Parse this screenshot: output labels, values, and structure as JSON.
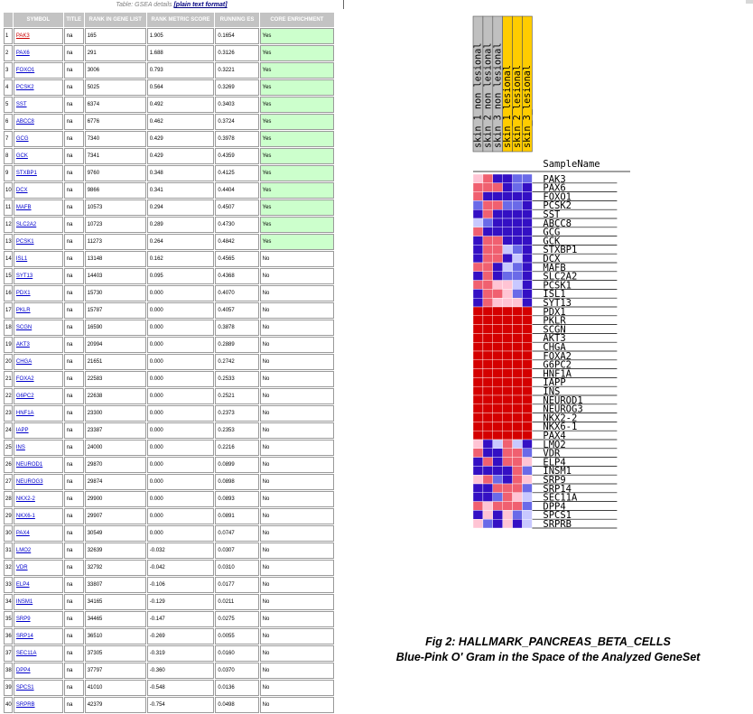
{
  "caption": {
    "prefix": "Table: GSEA details ",
    "link": "[plain text format]"
  },
  "columns": [
    "",
    "SYMBOL",
    "TITLE",
    "RANK IN GENE LIST",
    "RANK METRIC SCORE",
    "RUNNING ES",
    "CORE ENRICHMENT"
  ],
  "rows": [
    [
      "1",
      "PAK3",
      "na",
      "165",
      "1.905",
      "0.1654",
      "Yes"
    ],
    [
      "2",
      "PAX6",
      "na",
      "291",
      "1.688",
      "0.3126",
      "Yes"
    ],
    [
      "3",
      "FOXO1",
      "na",
      "3006",
      "0.793",
      "0.3221",
      "Yes"
    ],
    [
      "4",
      "PCSK2",
      "na",
      "5025",
      "0.564",
      "0.3269",
      "Yes"
    ],
    [
      "5",
      "SST",
      "na",
      "6374",
      "0.492",
      "0.3403",
      "Yes"
    ],
    [
      "6",
      "ABCC8",
      "na",
      "6776",
      "0.462",
      "0.3724",
      "Yes"
    ],
    [
      "7",
      "GCG",
      "na",
      "7340",
      "0.429",
      "0.3978",
      "Yes"
    ],
    [
      "8",
      "GCK",
      "na",
      "7341",
      "0.429",
      "0.4359",
      "Yes"
    ],
    [
      "9",
      "STXBP1",
      "na",
      "9760",
      "0.348",
      "0.4125",
      "Yes"
    ],
    [
      "10",
      "DCX",
      "na",
      "9866",
      "0.341",
      "0.4404",
      "Yes"
    ],
    [
      "11",
      "MAFB",
      "na",
      "10573",
      "0.294",
      "0.4507",
      "Yes"
    ],
    [
      "12",
      "SLC2A2",
      "na",
      "10723",
      "0.289",
      "0.4730",
      "Yes"
    ],
    [
      "13",
      "PCSK1",
      "na",
      "11273",
      "0.264",
      "0.4842",
      "Yes"
    ],
    [
      "14",
      "ISL1",
      "na",
      "13148",
      "0.162",
      "0.4565",
      "No"
    ],
    [
      "15",
      "SYT13",
      "na",
      "14403",
      "0.095",
      "0.4368",
      "No"
    ],
    [
      "16",
      "PDX1",
      "na",
      "15730",
      "0.000",
      "0.4070",
      "No"
    ],
    [
      "17",
      "PKLR",
      "na",
      "15787",
      "0.000",
      "0.4057",
      "No"
    ],
    [
      "18",
      "SCGN",
      "na",
      "16590",
      "0.000",
      "0.3878",
      "No"
    ],
    [
      "19",
      "AKT3",
      "na",
      "20994",
      "0.000",
      "0.2889",
      "No"
    ],
    [
      "20",
      "CHGA",
      "na",
      "21651",
      "0.000",
      "0.2742",
      "No"
    ],
    [
      "21",
      "FOXA2",
      "na",
      "22583",
      "0.000",
      "0.2533",
      "No"
    ],
    [
      "22",
      "G6PC2",
      "na",
      "22638",
      "0.000",
      "0.2521",
      "No"
    ],
    [
      "23",
      "HNF1A",
      "na",
      "23300",
      "0.000",
      "0.2373",
      "No"
    ],
    [
      "24",
      "IAPP",
      "na",
      "23387",
      "0.000",
      "0.2353",
      "No"
    ],
    [
      "25",
      "INS",
      "na",
      "24000",
      "0.000",
      "0.2216",
      "No"
    ],
    [
      "26",
      "NEUROD1",
      "na",
      "29870",
      "0.000",
      "0.0899",
      "No"
    ],
    [
      "27",
      "NEUROG3",
      "na",
      "29874",
      "0.000",
      "0.0898",
      "No"
    ],
    [
      "28",
      "NKX2-2",
      "na",
      "29900",
      "0.000",
      "0.0893",
      "No"
    ],
    [
      "29",
      "NKX6-1",
      "na",
      "29907",
      "0.000",
      "0.0891",
      "No"
    ],
    [
      "30",
      "PAX4",
      "na",
      "30549",
      "0.000",
      "0.0747",
      "No"
    ],
    [
      "31",
      "LMO2",
      "na",
      "32639",
      "-0.032",
      "0.0307",
      "No"
    ],
    [
      "32",
      "VDR",
      "na",
      "32792",
      "-0.042",
      "0.0310",
      "No"
    ],
    [
      "33",
      "ELP4",
      "na",
      "33807",
      "-0.106",
      "0.0177",
      "No"
    ],
    [
      "34",
      "INSM1",
      "na",
      "34165",
      "-0.129",
      "0.0211",
      "No"
    ],
    [
      "35",
      "SRP9",
      "na",
      "34465",
      "-0.147",
      "0.0275",
      "No"
    ],
    [
      "36",
      "SRP14",
      "na",
      "36510",
      "-0.269",
      "0.0055",
      "No"
    ],
    [
      "37",
      "SEC11A",
      "na",
      "37305",
      "-0.319",
      "0.0160",
      "No"
    ],
    [
      "38",
      "DPP4",
      "na",
      "37797",
      "-0.360",
      "0.0370",
      "No"
    ],
    [
      "39",
      "SPCS1",
      "na",
      "41010",
      "-0.548",
      "0.0136",
      "No"
    ],
    [
      "40",
      "SRPRB",
      "na",
      "42379",
      "-0.754",
      "0.0498",
      "No"
    ]
  ],
  "heatmap": {
    "samples": [
      "skin_1_non_lesional",
      "skin_2_non_lesional",
      "skin_3_non_lesional",
      "skin_1_lesional",
      "skin_2_lesional",
      "skin_3_lesional"
    ],
    "sample_header_colors": [
      "#c0c0c0",
      "#c0c0c0",
      "#c0c0c0",
      "#ffcc00",
      "#ffcc00",
      "#ffcc00"
    ],
    "sample_label": "SampleName",
    "genes": [
      "PAK3",
      "PAX6",
      "FOXO1",
      "PCSK2",
      "SST",
      "ABCC8",
      "GCG",
      "GCK",
      "STXBP1",
      "DCX",
      "MAFB",
      "SLC2A2",
      "PCSK1",
      "ISL1",
      "SYT13",
      "PDX1",
      "PKLR",
      "SCGN",
      "AKT3",
      "CHGA",
      "FOXA2",
      "G6PC2",
      "HNF1A",
      "IAPP",
      "INS",
      "NEUROD1",
      "NEUROG3",
      "NKX2-2",
      "NKX6-1",
      "PAX4",
      "LMO2",
      "VDR",
      "ELP4",
      "INSM1",
      "SRP9",
      "SRP14",
      "SEC11A",
      "DPP4",
      "SPCS1",
      "SRPRB"
    ],
    "palette": {
      "R": "#d40000",
      "r": "#f06070",
      "p": "#ffc4d4",
      "b": "#c8c8ff",
      "m": "#6a6ae8",
      "B": "#3410c4"
    },
    "cells": [
      "prBBmm",
      "rrrBmB",
      "rBBBBB",
      "mrrmmB",
      "BrBBBB",
      "bmBBBB",
      "rBBBBB",
      "BrrBBB",
      "BrrbmB",
      "BrrBbB",
      "rrBbmB",
      "BrBmmB",
      "rrppbB",
      "BrrpmB",
      "BrpppB",
      "RRRRRR",
      "RRRRRR",
      "RRRRRR",
      "RRRRRR",
      "RRRRRR",
      "RRRRRR",
      "RRRRRR",
      "RRRRRR",
      "RRRRRR",
      "RRRRRR",
      "RRRRRR",
      "RRRRRR",
      "RRRRRR",
      "RRRRRR",
      "RRRRRR",
      "pBbrbB",
      "rBBrrm",
      "BrBrrp",
      "BBBBrm",
      "prmBrp",
      "BBrrrm",
      "BBmrpb",
      "rprrrm",
      "BpBpmb",
      "pmBpBb"
    ]
  },
  "figure": {
    "title": "Fig 2: HALLMARK_PANCREAS_BETA_CELLS",
    "subtitle": "Blue-Pink O' Gram in the Space of the Analyzed GeneSet"
  }
}
